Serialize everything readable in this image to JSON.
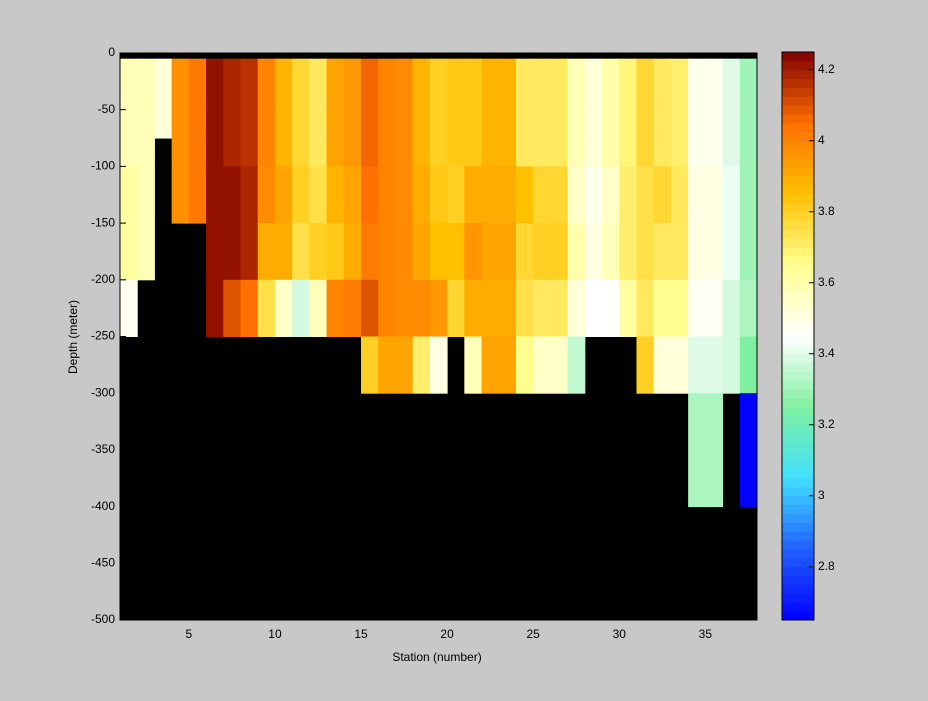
{
  "chart_data": {
    "type": "heatmap",
    "xlabel": "Station (number)",
    "ylabel": "Depth (meter)",
    "x": [
      1,
      2,
      3,
      4,
      5,
      6,
      7,
      8,
      9,
      10,
      11,
      12,
      13,
      14,
      15,
      16,
      17,
      18,
      19,
      20,
      21,
      22,
      23,
      24,
      25,
      26,
      27,
      28,
      29,
      30,
      31,
      32,
      33,
      34,
      35,
      36,
      37,
      38
    ],
    "y": [
      0,
      -5,
      -50,
      -75,
      -100,
      -150,
      -200,
      -250,
      -300,
      -400,
      -500
    ],
    "values": [
      [
        null,
        null,
        null,
        null,
        null,
        null,
        null,
        null,
        null,
        null,
        null,
        null,
        null,
        null,
        null,
        null,
        null,
        null,
        null,
        null,
        null,
        null,
        null,
        null,
        null,
        null,
        null,
        null,
        null,
        null,
        null,
        null,
        null,
        null,
        null,
        null,
        null
      ],
      [
        3.58,
        3.58,
        3.52,
        3.97,
        4.03,
        4.22,
        4.18,
        4.16,
        4.0,
        3.88,
        3.78,
        3.72,
        3.92,
        3.95,
        4.07,
        4.0,
        3.98,
        3.88,
        3.8,
        3.82,
        3.82,
        3.88,
        3.88,
        3.72,
        3.72,
        3.72,
        3.58,
        3.52,
        3.6,
        3.68,
        3.78,
        3.72,
        3.7,
        3.48,
        3.48,
        3.4,
        3.3
      ],
      [
        3.58,
        3.58,
        3.52,
        3.97,
        4.03,
        4.22,
        4.18,
        4.16,
        4.0,
        3.88,
        3.78,
        3.72,
        3.92,
        3.95,
        4.07,
        4.0,
        3.98,
        3.88,
        3.8,
        3.82,
        3.82,
        3.88,
        3.88,
        3.72,
        3.72,
        3.72,
        3.58,
        3.52,
        3.6,
        3.68,
        3.78,
        3.72,
        3.7,
        3.48,
        3.48,
        3.4,
        3.3
      ],
      [
        3.58,
        3.58,
        null,
        3.97,
        4.03,
        4.22,
        4.18,
        4.16,
        4.0,
        3.88,
        3.78,
        3.72,
        3.92,
        3.95,
        4.07,
        4.0,
        3.98,
        3.88,
        3.8,
        3.82,
        3.82,
        3.88,
        3.88,
        3.72,
        3.72,
        3.72,
        3.58,
        3.52,
        3.6,
        3.68,
        3.78,
        3.72,
        3.7,
        3.48,
        3.48,
        3.4,
        3.3
      ],
      [
        3.62,
        3.58,
        null,
        3.97,
        4.03,
        4.22,
        4.22,
        4.18,
        3.98,
        3.92,
        3.8,
        3.75,
        3.88,
        3.92,
        4.05,
        4.0,
        3.98,
        3.9,
        3.82,
        3.8,
        3.9,
        3.9,
        3.9,
        3.85,
        3.78,
        3.78,
        3.55,
        3.48,
        3.55,
        3.7,
        3.75,
        3.78,
        3.72,
        3.5,
        3.5,
        3.42,
        3.3
      ],
      [
        3.62,
        3.58,
        null,
        null,
        null,
        4.22,
        4.22,
        4.18,
        3.9,
        3.9,
        3.75,
        3.8,
        3.82,
        3.9,
        4.02,
        4.0,
        3.98,
        3.92,
        3.85,
        3.85,
        3.96,
        3.92,
        3.92,
        3.78,
        3.8,
        3.8,
        3.6,
        3.5,
        3.58,
        3.7,
        3.75,
        3.72,
        3.72,
        3.5,
        3.5,
        3.42,
        3.3
      ],
      [
        3.48,
        null,
        null,
        null,
        null,
        4.22,
        4.1,
        4.05,
        3.75,
        3.55,
        3.38,
        3.58,
        4.0,
        4.02,
        4.1,
        4.0,
        3.98,
        3.98,
        3.95,
        3.78,
        3.9,
        3.9,
        3.9,
        3.75,
        3.72,
        3.72,
        3.52,
        3.45,
        3.45,
        3.62,
        3.72,
        3.65,
        3.65,
        3.47,
        3.47,
        3.38,
        3.32
      ],
      [
        null,
        null,
        null,
        null,
        null,
        null,
        null,
        null,
        null,
        null,
        null,
        null,
        null,
        null,
        3.8,
        3.92,
        3.92,
        3.7,
        3.5,
        null,
        3.58,
        3.92,
        3.92,
        3.65,
        3.55,
        3.55,
        3.35,
        null,
        null,
        null,
        3.8,
        3.52,
        3.52,
        3.4,
        3.4,
        3.38,
        3.25
      ],
      [
        null,
        null,
        null,
        null,
        null,
        null,
        null,
        null,
        null,
        null,
        null,
        null,
        null,
        null,
        null,
        null,
        null,
        null,
        null,
        null,
        null,
        null,
        null,
        null,
        null,
        null,
        null,
        null,
        null,
        null,
        null,
        null,
        null,
        3.32,
        3.32,
        null,
        2.65
      ],
      [
        null,
        null,
        null,
        null,
        null,
        null,
        null,
        null,
        null,
        null,
        null,
        null,
        null,
        null,
        null,
        null,
        null,
        null,
        null,
        null,
        null,
        null,
        null,
        null,
        null,
        null,
        null,
        null,
        null,
        null,
        null,
        null,
        null,
        null,
        null,
        null,
        null
      ]
    ],
    "xlim": [
      1,
      38
    ],
    "xticks": [
      5,
      10,
      15,
      20,
      25,
      30,
      35
    ],
    "ylim": [
      -500,
      0
    ],
    "yticks": [
      0,
      -50,
      -100,
      -150,
      -200,
      -250,
      -300,
      -350,
      -400,
      -450,
      -500
    ],
    "clim": [
      2.65,
      4.25
    ],
    "cticks": [
      2.8,
      3,
      3.2,
      3.4,
      3.6,
      3.8,
      4,
      4.2
    ],
    "colormap": [
      "#0000ff",
      "#2060ff",
      "#40e0ff",
      "#80f0a0",
      "#ffffff",
      "#ffff90",
      "#ffc000",
      "#ff7000",
      "#800000"
    ],
    "missing_color": "#000000"
  }
}
